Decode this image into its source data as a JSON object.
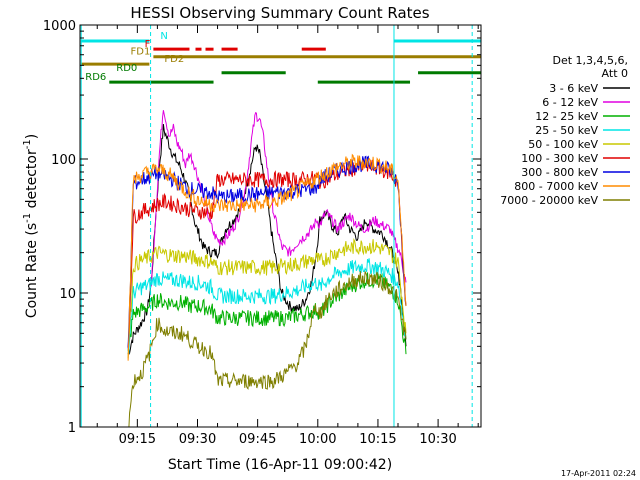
{
  "chart_data": {
    "type": "line",
    "title": "HESSI Observing Summary Count Rates",
    "xlabel": "Start Time (16-Apr-11 09:00:42)",
    "ylabel_main": "Count Rate (s",
    "ylabel_sup1": "-1",
    "ylabel_mid": " detector",
    "ylabel_sup2": "-1",
    "ylabel_end": ")",
    "yscale": "log",
    "ylim": [
      1,
      1000
    ],
    "xlim_minutes": [
      0.7,
      100.7
    ],
    "x_ticks": [
      {
        "label": "09:15",
        "min": 15
      },
      {
        "label": "09:30",
        "min": 30
      },
      {
        "label": "09:45",
        "min": 45
      },
      {
        "label": "10:00",
        "min": 60
      },
      {
        "label": "10:15",
        "min": 75
      },
      {
        "label": "10:30",
        "min": 90
      }
    ],
    "y_ticks": [
      {
        "label": "1",
        "v": 1
      },
      {
        "label": "10",
        "v": 10
      },
      {
        "label": "100",
        "v": 100
      },
      {
        "label": "1000",
        "v": 1000
      }
    ],
    "detector_note": "Det 1,3,4,5,6,",
    "attenuator_note": "Att 0",
    "timestamp": "17-Apr-2011 02:24",
    "flag_bars": [
      {
        "label": "N",
        "color": "#00e5e5",
        "y": 760,
        "segments": [
          [
            1,
            18
          ],
          [
            79,
            101
          ]
        ],
        "label_side": "right",
        "label_x": 20
      },
      {
        "label": "F",
        "color": "#e00000",
        "y": 660,
        "segments": [
          [
            19,
            28
          ],
          [
            29.5,
            31
          ],
          [
            32,
            34
          ],
          [
            36,
            40
          ],
          [
            56,
            62
          ]
        ],
        "label_side": "left",
        "label_x": 19
      },
      {
        "label": "FD1",
        "color": "#9a7d00",
        "y": 580,
        "segments": [
          [
            19,
            101
          ]
        ],
        "label_side": "left",
        "label_x": 19
      },
      {
        "label": "FD2",
        "color": "#9a7d00",
        "y": 510,
        "segments": [
          [
            1,
            18
          ]
        ],
        "label_side": "right",
        "label_x": 21
      },
      {
        "label": "RD0",
        "color": "#007a00",
        "y": 440,
        "segments": [
          [
            36,
            52
          ],
          [
            85,
            101
          ]
        ],
        "label_side": "right",
        "label_x": 9
      },
      {
        "label": "RD6",
        "color": "#007a00",
        "y": 375,
        "segments": [
          [
            8,
            34
          ],
          [
            60,
            83
          ]
        ],
        "label_side": "left",
        "label_x": 8
      }
    ],
    "vertical_markers": [
      {
        "min": 1,
        "color": "#00e5e5",
        "style": "solid"
      },
      {
        "min": 18.3,
        "color": "#00e5e5",
        "style": "dash"
      },
      {
        "min": 79,
        "color": "#00e5e5",
        "style": "solid"
      },
      {
        "min": 98.5,
        "color": "#00e5e5",
        "style": "dash"
      }
    ],
    "series": [
      {
        "name": "3 - 6 keV",
        "color": "#000000",
        "x": [
          12.7,
          14,
          16,
          17.5,
          18.5,
          19.5,
          20.5,
          21.5,
          22.5,
          23.5,
          24.5,
          25.5,
          26.5,
          27.5,
          28.5,
          29.5,
          30.5,
          31.5,
          33.5,
          35,
          37,
          39,
          41,
          43,
          44.5,
          45.5,
          46.5,
          47.5,
          49,
          51,
          53,
          55,
          57,
          58.5,
          59.8,
          60.5,
          62,
          63.5,
          65,
          66.5,
          68,
          70,
          72,
          74,
          76,
          78,
          79,
          80.5,
          82
        ],
        "y": [
          3.5,
          4.8,
          6,
          7.5,
          12,
          35,
          90,
          170,
          140,
          115,
          100,
          90,
          75,
          60,
          45,
          32,
          27,
          22,
          20,
          20,
          30,
          35,
          45,
          80,
          125,
          110,
          70,
          45,
          22,
          10,
          8,
          7.5,
          9,
          12,
          22,
          35,
          40,
          32,
          28,
          38,
          30,
          26,
          35,
          30,
          28,
          22,
          18,
          12,
          4
        ]
      },
      {
        "name": "6 - 12 keV",
        "color": "#e000e0",
        "x": [
          18.5,
          19.5,
          20.5,
          21.5,
          22.2,
          23,
          24,
          25,
          26,
          27,
          28,
          29,
          30,
          31,
          32,
          33,
          34,
          35,
          36,
          38,
          40,
          42,
          43.5,
          44.5,
          45.5,
          46.5,
          47.5,
          49,
          51,
          53,
          55,
          57,
          58.5,
          59.8,
          60.5,
          62,
          63.5,
          65,
          66.5,
          68,
          70,
          72,
          74,
          76,
          78,
          79,
          80.5,
          82
        ],
        "y": [
          12,
          35,
          110,
          250,
          190,
          150,
          170,
          130,
          115,
          90,
          110,
          95,
          75,
          60,
          45,
          35,
          28,
          25,
          24,
          28,
          35,
          60,
          140,
          215,
          200,
          140,
          80,
          40,
          22,
          20,
          24,
          27,
          30,
          35,
          32,
          40,
          35,
          30,
          34,
          38,
          32,
          30,
          35,
          32,
          30,
          25,
          20,
          12
        ]
      },
      {
        "name": "12 - 25 keV",
        "color": "#00b000",
        "x": [
          12.7,
          14,
          16,
          18,
          20,
          22,
          24,
          26,
          28,
          30,
          32,
          33.5,
          35,
          37,
          40,
          43,
          46,
          49,
          52,
          55,
          58,
          59.8,
          60.5,
          63,
          66,
          69,
          72,
          75,
          78,
          80,
          82
        ],
        "y": [
          3.5,
          7,
          7.5,
          8,
          9,
          8.5,
          8.5,
          8.5,
          8,
          8,
          7.8,
          7.5,
          6.5,
          6.5,
          6.5,
          6.5,
          6.5,
          6.5,
          6.5,
          6.8,
          7.2,
          7.5,
          7,
          8.5,
          10,
          11.5,
          12.5,
          12.5,
          11,
          9,
          3.5
        ]
      },
      {
        "name": "25 - 50 keV",
        "color": "#00e5e5",
        "x": [
          12.7,
          14,
          16,
          18,
          20,
          22,
          24,
          26,
          28,
          30,
          32,
          33.5,
          35,
          37,
          40,
          43,
          46,
          49,
          52,
          55,
          58,
          59.8,
          60.5,
          63,
          66,
          69,
          72,
          75,
          78,
          80,
          82
        ],
        "y": [
          3.5,
          10,
          11,
          11.5,
          13,
          12.5,
          12.5,
          12.5,
          12,
          12,
          11.5,
          11,
          9.5,
          9.5,
          9.5,
          9.5,
          9.5,
          9.5,
          10,
          10.5,
          11.5,
          12,
          11,
          13,
          14.5,
          15.5,
          16,
          15.5,
          14,
          12,
          4.5
        ]
      },
      {
        "name": "50 - 100 keV",
        "color": "#c8c800",
        "x": [
          12.7,
          14,
          16,
          18,
          20,
          22,
          24,
          26,
          28,
          30,
          32,
          33.5,
          35,
          37,
          40,
          43,
          46,
          49,
          52,
          55,
          58,
          59.8,
          60.5,
          63,
          66,
          69,
          72,
          75,
          78,
          80,
          82
        ],
        "y": [
          3.5,
          16,
          17.5,
          18.5,
          20,
          19.5,
          19,
          19,
          18.5,
          18,
          17.5,
          17,
          15.5,
          15.5,
          15.5,
          15.5,
          15.5,
          15.5,
          16,
          16.5,
          17.5,
          18,
          17,
          19,
          21,
          22,
          22.5,
          22,
          20,
          17,
          5
        ]
      },
      {
        "name": "100 - 300 keV",
        "color": "#e00000",
        "x": [
          12.7,
          14,
          16,
          18,
          20,
          22,
          24,
          26,
          28,
          30,
          32,
          33.5,
          35,
          37,
          40,
          43,
          46,
          49,
          52,
          55,
          58,
          59.8,
          60.5,
          63,
          66,
          69,
          72,
          75,
          78,
          80,
          82
        ],
        "y": [
          3.5,
          37,
          40,
          43,
          46,
          48,
          46,
          44,
          42,
          41,
          40,
          39,
          70,
          70,
          70,
          70,
          70,
          70,
          70,
          70,
          71,
          72,
          68,
          72,
          80,
          85,
          88,
          86,
          78,
          65,
          8
        ]
      },
      {
        "name": "300 - 800 keV",
        "color": "#0000e0",
        "x": [
          12.7,
          14,
          16,
          18,
          20,
          22,
          24,
          26,
          28,
          30,
          32,
          33.5,
          35,
          37,
          40,
          43,
          46,
          49,
          52,
          55,
          58,
          59.8,
          60.5,
          63,
          66,
          69,
          72,
          75,
          78,
          80,
          82
        ],
        "y": [
          3.5,
          65,
          70,
          74,
          78,
          75,
          70,
          64,
          60,
          58,
          57,
          56,
          52,
          52,
          53,
          54,
          55,
          56,
          57,
          58,
          60,
          62,
          70,
          77,
          85,
          90,
          92,
          90,
          82,
          68,
          8
        ]
      },
      {
        "name": "800 - 7000 keV",
        "color": "#ff8c00",
        "x": [
          12.7,
          14,
          16,
          18,
          20,
          22,
          24,
          26,
          28,
          30,
          32,
          33.5,
          35,
          37,
          40,
          43,
          46,
          49,
          52,
          55,
          58,
          59.8,
          60.5,
          63,
          66,
          69,
          72,
          75,
          78,
          80,
          82
        ],
        "y": [
          3.5,
          70,
          76,
          80,
          84,
          80,
          72,
          62,
          55,
          50,
          47,
          46,
          45,
          45,
          45,
          45,
          46,
          48,
          52,
          58,
          66,
          72,
          74,
          82,
          90,
          95,
          95,
          92,
          84,
          70,
          8
        ]
      },
      {
        "name": "7000 - 20000 keV",
        "color": "#7f7f00",
        "x": [
          12.7,
          14,
          16,
          18,
          20,
          22,
          24,
          26,
          28,
          30,
          32,
          33.5,
          35,
          37,
          40,
          43,
          46,
          49,
          52,
          55,
          57,
          58.5,
          59.8,
          60.5,
          63,
          66,
          69,
          72,
          75,
          78,
          80,
          82
        ],
        "y": [
          1,
          2.2,
          2.5,
          3.5,
          6,
          5.2,
          5,
          5,
          4.5,
          4,
          3.8,
          3.5,
          2.2,
          2.2,
          2.2,
          2.2,
          2.2,
          2.2,
          2.5,
          3,
          4,
          6.5,
          8,
          7,
          9.5,
          11,
          12.5,
          13,
          12.5,
          11,
          9,
          4.5
        ]
      }
    ]
  }
}
